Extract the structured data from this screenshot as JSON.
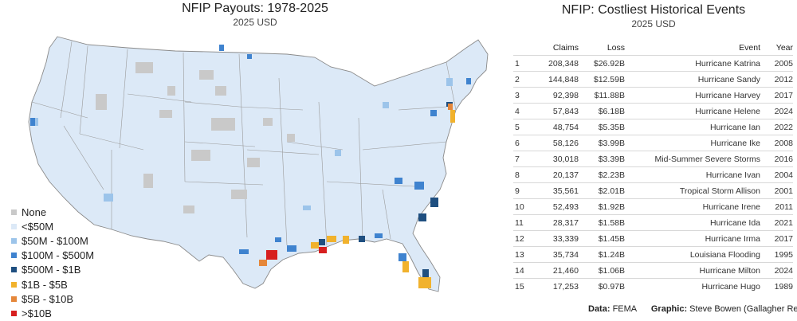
{
  "map": {
    "title": "NFIP Payouts: 1978-2025",
    "subtitle": "2025 USD",
    "legend": [
      {
        "label": "None",
        "color": "#c9c9c9"
      },
      {
        "label": "<$50M",
        "color": "#dce9f7"
      },
      {
        "label": "$50M - $100M",
        "color": "#9cc4ea"
      },
      {
        "label": "$100M - $500M",
        "color": "#3f83cf"
      },
      {
        "label": "$500M - $1B",
        "color": "#1f4f80"
      },
      {
        "label": "$1B - $5B",
        "color": "#f1b22d"
      },
      {
        "label": "$5B - $10B",
        "color": "#e5873a"
      },
      {
        "label": ">$10B",
        "color": "#d71f1f"
      }
    ]
  },
  "chart_data": {
    "type": "table",
    "title": "NFIP: Costliest Historical Events",
    "subtitle": "2025 USD",
    "columns": [
      "",
      "Claims",
      "Loss",
      "Event",
      "Year"
    ],
    "rows": [
      {
        "rank": "1",
        "claims": "208,348",
        "loss": "$26.92B",
        "event": "Hurricane Katrina",
        "year": "2005"
      },
      {
        "rank": "2",
        "claims": "144,848",
        "loss": "$12.59B",
        "event": "Hurricane Sandy",
        "year": "2012"
      },
      {
        "rank": "3",
        "claims": "92,398",
        "loss": "$11.88B",
        "event": "Hurricane Harvey",
        "year": "2017"
      },
      {
        "rank": "4",
        "claims": "57,843",
        "loss": "$6.18B",
        "event": "Hurricane Helene",
        "year": "2024"
      },
      {
        "rank": "5",
        "claims": "48,754",
        "loss": "$5.35B",
        "event": "Hurricane Ian",
        "year": "2022"
      },
      {
        "rank": "6",
        "claims": "58,126",
        "loss": "$3.99B",
        "event": "Hurricane Ike",
        "year": "2008"
      },
      {
        "rank": "7",
        "claims": "30,018",
        "loss": "$3.39B",
        "event": "Mid-Summer Severe Storms",
        "year": "2016"
      },
      {
        "rank": "8",
        "claims": "20,137",
        "loss": "$2.23B",
        "event": "Hurricane Ivan",
        "year": "2004"
      },
      {
        "rank": "9",
        "claims": "35,561",
        "loss": "$2.01B",
        "event": "Tropical Storm Allison",
        "year": "2001"
      },
      {
        "rank": "10",
        "claims": "52,493",
        "loss": "$1.92B",
        "event": "Hurricane Irene",
        "year": "2011"
      },
      {
        "rank": "11",
        "claims": "28,317",
        "loss": "$1.58B",
        "event": "Hurricane Ida",
        "year": "2021"
      },
      {
        "rank": "12",
        "claims": "33,339",
        "loss": "$1.45B",
        "event": "Hurricane Irma",
        "year": "2017"
      },
      {
        "rank": "13",
        "claims": "35,734",
        "loss": "$1.24B",
        "event": "Louisiana Flooding",
        "year": "1995"
      },
      {
        "rank": "14",
        "claims": "21,460",
        "loss": "$1.06B",
        "event": "Hurricane Milton",
        "year": "2024"
      },
      {
        "rank": "15",
        "claims": "17,253",
        "loss": "$0.97B",
        "event": "Hurricane Hugo",
        "year": "1989"
      }
    ]
  },
  "credit": {
    "data_label": "Data:",
    "data_value": "FEMA",
    "graphic_label": "Graphic:",
    "graphic_value": "Steve Bowen (Gallagher Re)"
  }
}
